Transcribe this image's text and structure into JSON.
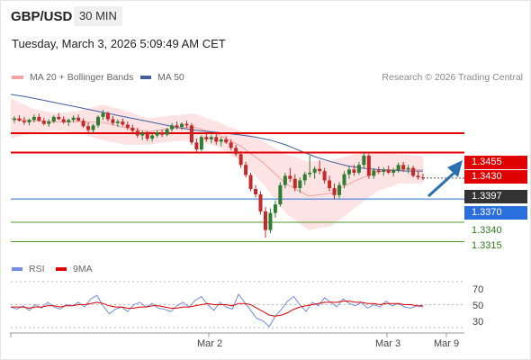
{
  "header": {
    "pair": "GBP/USD",
    "timeframe": "30 MIN",
    "datetime": "Tuesday, March 3, 2026 5:09:49 AM CET"
  },
  "legend": {
    "ma20_label": "MA 20 + Bollinger Bands",
    "ma50_label": "MA 50",
    "copyright": "Research © 2026 Trading Central",
    "rsi_label": "RSI",
    "nine_ma_label": "9MA"
  },
  "colors": {
    "candle_up": "#2e7d32",
    "candle_down": "#c62828",
    "bollinger_band": "#fcd9d9",
    "ma20": "#f4a3a3",
    "ma50": "#3f5f9f",
    "resistance": "#e00000",
    "support_blue": "#2a6fdb",
    "support_green": "#4c9a2a",
    "rsi": "#6f8fe0",
    "rsi_ma": "#e00000",
    "arrow": "#2a6fb0"
  },
  "levels": {
    "r2": "1.3455",
    "r1": "1.3430",
    "last": "1.3397",
    "s1": "1.3370",
    "s2": "1.3340",
    "s3": "1.3315"
  },
  "rsi_ticks": [
    "70",
    "50",
    "30"
  ],
  "x_labels": [
    "Mar 2",
    "Mar 3",
    "Mar 9"
  ],
  "chart_data": {
    "type": "candlestick",
    "title": "GBP/USD 30 MIN",
    "price_range": [
      1.329,
      1.352
    ],
    "horizontal_levels": [
      1.3455,
      1.343,
      1.3397,
      1.337,
      1.334,
      1.3315
    ],
    "candles_ohlc": [
      [
        1.3472,
        1.3477,
        1.3468,
        1.3474
      ],
      [
        1.3474,
        1.3478,
        1.347,
        1.3471
      ],
      [
        1.3471,
        1.3476,
        1.3466,
        1.3469
      ],
      [
        1.3469,
        1.3474,
        1.3465,
        1.3472
      ],
      [
        1.3472,
        1.3479,
        1.3469,
        1.3476
      ],
      [
        1.3476,
        1.348,
        1.347,
        1.3471
      ],
      [
        1.3471,
        1.3475,
        1.3465,
        1.3467
      ],
      [
        1.3467,
        1.3473,
        1.3463,
        1.347
      ],
      [
        1.347,
        1.3478,
        1.3468,
        1.3476
      ],
      [
        1.3476,
        1.3481,
        1.3472,
        1.3473
      ],
      [
        1.3473,
        1.3477,
        1.3467,
        1.3469
      ],
      [
        1.3469,
        1.3474,
        1.3464,
        1.3472
      ],
      [
        1.3472,
        1.3478,
        1.3469,
        1.3475
      ],
      [
        1.3475,
        1.3479,
        1.347,
        1.3471
      ],
      [
        1.3471,
        1.3474,
        1.3462,
        1.3464
      ],
      [
        1.3464,
        1.3469,
        1.3456,
        1.3459
      ],
      [
        1.3459,
        1.3467,
        1.3455,
        1.3465
      ],
      [
        1.3465,
        1.3478,
        1.3462,
        1.3476
      ],
      [
        1.3476,
        1.3485,
        1.3472,
        1.3481
      ],
      [
        1.3481,
        1.3483,
        1.347,
        1.3473
      ],
      [
        1.3473,
        1.3477,
        1.3465,
        1.3468
      ],
      [
        1.3468,
        1.3473,
        1.3463,
        1.347
      ],
      [
        1.347,
        1.3474,
        1.3464,
        1.3466
      ],
      [
        1.3466,
        1.347,
        1.3459,
        1.3462
      ],
      [
        1.3462,
        1.3466,
        1.3455,
        1.3458
      ],
      [
        1.3458,
        1.3462,
        1.3449,
        1.3452
      ],
      [
        1.3452,
        1.3458,
        1.3446,
        1.3455
      ],
      [
        1.3455,
        1.3458,
        1.3445,
        1.3448
      ],
      [
        1.3448,
        1.3454,
        1.3444,
        1.3452
      ],
      [
        1.3452,
        1.3459,
        1.3449,
        1.3456
      ],
      [
        1.3456,
        1.346,
        1.345,
        1.3453
      ],
      [
        1.3453,
        1.3462,
        1.3451,
        1.346
      ],
      [
        1.346,
        1.3468,
        1.3457,
        1.3465
      ],
      [
        1.3465,
        1.347,
        1.346,
        1.3463
      ],
      [
        1.3463,
        1.3469,
        1.3459,
        1.3467
      ],
      [
        1.3467,
        1.3471,
        1.3462,
        1.3465
      ],
      [
        1.3465,
        1.3468,
        1.344,
        1.3443
      ],
      [
        1.3443,
        1.3448,
        1.343,
        1.3434
      ],
      [
        1.3434,
        1.3452,
        1.3432,
        1.345
      ],
      [
        1.345,
        1.3456,
        1.3444,
        1.3447
      ],
      [
        1.3447,
        1.3453,
        1.3442,
        1.345
      ],
      [
        1.345,
        1.3454,
        1.344,
        1.3444
      ],
      [
        1.3444,
        1.345,
        1.3438,
        1.3447
      ],
      [
        1.3447,
        1.3451,
        1.3441,
        1.3443
      ],
      [
        1.3443,
        1.3447,
        1.3433,
        1.3436
      ],
      [
        1.3436,
        1.344,
        1.3425,
        1.3428
      ],
      [
        1.3428,
        1.3432,
        1.341,
        1.3414
      ],
      [
        1.3414,
        1.3418,
        1.3398,
        1.3401
      ],
      [
        1.3401,
        1.3404,
        1.338,
        1.3383
      ],
      [
        1.3383,
        1.3388,
        1.3372,
        1.3376
      ],
      [
        1.3376,
        1.338,
        1.335,
        1.3354
      ],
      [
        1.3354,
        1.336,
        1.332,
        1.333
      ],
      [
        1.333,
        1.3358,
        1.3326,
        1.3352
      ],
      [
        1.3352,
        1.3368,
        1.3346,
        1.3363
      ],
      [
        1.3363,
        1.3392,
        1.336,
        1.3388
      ],
      [
        1.3388,
        1.3404,
        1.3384,
        1.34
      ],
      [
        1.34,
        1.341,
        1.3392,
        1.3396
      ],
      [
        1.3396,
        1.3402,
        1.338,
        1.3384
      ],
      [
        1.3384,
        1.3398,
        1.3378,
        1.3394
      ],
      [
        1.3394,
        1.3405,
        1.3388,
        1.3402
      ],
      [
        1.3402,
        1.3426,
        1.3398,
        1.3404
      ],
      [
        1.3404,
        1.3412,
        1.3396,
        1.3409
      ],
      [
        1.3409,
        1.342,
        1.3402,
        1.3406
      ],
      [
        1.3406,
        1.341,
        1.339,
        1.3394
      ],
      [
        1.3394,
        1.34,
        1.338,
        1.3384
      ],
      [
        1.3384,
        1.339,
        1.337,
        1.3375
      ],
      [
        1.3375,
        1.3392,
        1.3371,
        1.3388
      ],
      [
        1.3388,
        1.3406,
        1.3384,
        1.3402
      ],
      [
        1.3402,
        1.3412,
        1.3396,
        1.3408
      ],
      [
        1.3408,
        1.3414,
        1.34,
        1.3404
      ],
      [
        1.3404,
        1.3418,
        1.3401,
        1.3414
      ],
      [
        1.3414,
        1.343,
        1.341,
        1.3426
      ],
      [
        1.3426,
        1.3428,
        1.3396,
        1.34
      ],
      [
        1.34,
        1.341,
        1.3396,
        1.3407
      ],
      [
        1.3407,
        1.3412,
        1.3402,
        1.3405
      ],
      [
        1.3405,
        1.3411,
        1.34,
        1.3408
      ],
      [
        1.3408,
        1.3413,
        1.3402,
        1.3404
      ],
      [
        1.3404,
        1.341,
        1.3399,
        1.3407
      ],
      [
        1.3407,
        1.3417,
        1.3404,
        1.3414
      ],
      [
        1.3414,
        1.3418,
        1.3405,
        1.3408
      ],
      [
        1.3408,
        1.3414,
        1.3403,
        1.341
      ],
      [
        1.341,
        1.3413,
        1.3398,
        1.34
      ],
      [
        1.34,
        1.3406,
        1.3395,
        1.3398
      ],
      [
        1.3398,
        1.3403,
        1.3394,
        1.3397
      ]
    ],
    "ma50": [
      1.3505,
      1.3502,
      1.3498,
      1.3494,
      1.349,
      1.3486,
      1.3482,
      1.3478,
      1.3474,
      1.347,
      1.3466,
      1.3462,
      1.3459,
      1.3457,
      1.3455,
      1.3453,
      1.345,
      1.3446,
      1.344,
      1.3432,
      1.3424,
      1.3418,
      1.3413,
      1.341,
      1.3408,
      1.3407,
      1.3406,
      1.3406
    ],
    "bb_upper": [
      1.35,
      1.3486,
      1.3481,
      1.3484,
      1.3492,
      1.3484,
      1.3474,
      1.3478,
      1.348,
      1.347,
      1.3458,
      1.3445,
      1.3428,
      1.3418,
      1.342,
      1.3428,
      1.343,
      1.3428,
      1.3425
    ],
    "bb_lower": [
      1.3448,
      1.3456,
      1.3458,
      1.3455,
      1.3446,
      1.344,
      1.344,
      1.3444,
      1.3446,
      1.3438,
      1.342,
      1.339,
      1.3352,
      1.333,
      1.3335,
      1.3358,
      1.338,
      1.339,
      1.339
    ],
    "rsi_range": [
      20,
      80
    ],
    "rsi": [
      48,
      46,
      49,
      45,
      50,
      47,
      52,
      48,
      46,
      50,
      49,
      52,
      48,
      55,
      58,
      49,
      42,
      46,
      48,
      44,
      50,
      52,
      48,
      51,
      47,
      46,
      44,
      49,
      52,
      48,
      54,
      57,
      50,
      45,
      52,
      48,
      46,
      59,
      52,
      45,
      38,
      36,
      31,
      40,
      46,
      53,
      57,
      50,
      44,
      52,
      49,
      56,
      52,
      48,
      55,
      51,
      49,
      52,
      47,
      50,
      48,
      53,
      49,
      51,
      48,
      47,
      49,
      48
    ],
    "rsi_ma": [
      48,
      48,
      48,
      47,
      48,
      48,
      49,
      49,
      48,
      49,
      49,
      50,
      50,
      51,
      52,
      51,
      49,
      48,
      48,
      47,
      47,
      48,
      48,
      49,
      49,
      48,
      47,
      47,
      48,
      48,
      49,
      50,
      51,
      50,
      50,
      50,
      49,
      51,
      51,
      50,
      47,
      44,
      41,
      40,
      41,
      43,
      46,
      48,
      49,
      50,
      51,
      52,
      52,
      52,
      53,
      53,
      52,
      52,
      51,
      51,
      50,
      51,
      51,
      51,
      50,
      50,
      49,
      49
    ]
  }
}
